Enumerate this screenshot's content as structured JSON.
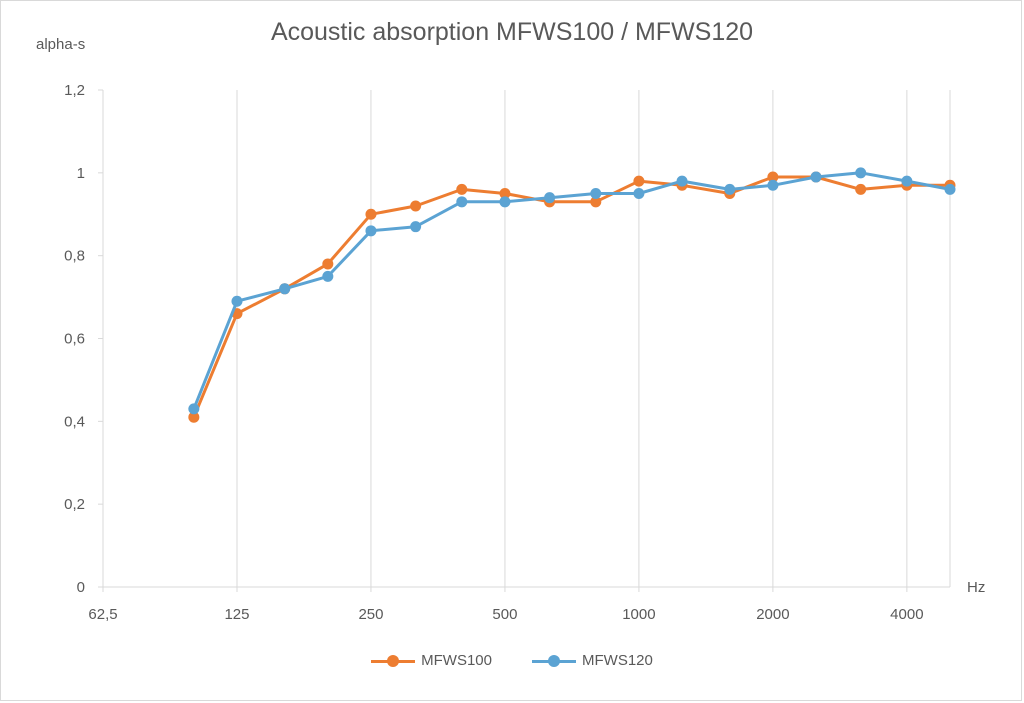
{
  "chart_data": {
    "type": "line",
    "title": "Acoustic absorption MFWS100 / MFWS120",
    "ylabel": "alpha-s",
    "xlabel": "Hz",
    "xscale": "log2",
    "xlim": [
      62.5,
      5000
    ],
    "ylim": [
      0,
      1.2
    ],
    "x_tick_labels": [
      "62,5",
      "125",
      "250",
      "500",
      "1000",
      "2000",
      "4000"
    ],
    "y_tick_labels": [
      "0",
      "0,2",
      "0,4",
      "0,6",
      "0,8",
      "1",
      "1,2"
    ],
    "grid": "vertical",
    "legend_position": "bottom",
    "x": [
      100,
      125,
      160,
      200,
      250,
      315,
      400,
      500,
      630,
      800,
      1000,
      1250,
      1600,
      2000,
      2500,
      3150,
      4000,
      5000
    ],
    "series": [
      {
        "name": "MFWS100",
        "color": "#ed7d31",
        "values": [
          0.41,
          0.66,
          0.72,
          0.78,
          0.9,
          0.92,
          0.96,
          0.95,
          0.93,
          0.93,
          0.98,
          0.97,
          0.95,
          0.99,
          0.99,
          0.96,
          0.97,
          0.97
        ]
      },
      {
        "name": "MFWS120",
        "color": "#5ba3d3",
        "values": [
          0.43,
          0.69,
          0.72,
          0.75,
          0.86,
          0.87,
          0.93,
          0.93,
          0.94,
          0.95,
          0.95,
          0.98,
          0.96,
          0.97,
          0.99,
          1.0,
          0.98,
          0.96
        ]
      }
    ]
  }
}
